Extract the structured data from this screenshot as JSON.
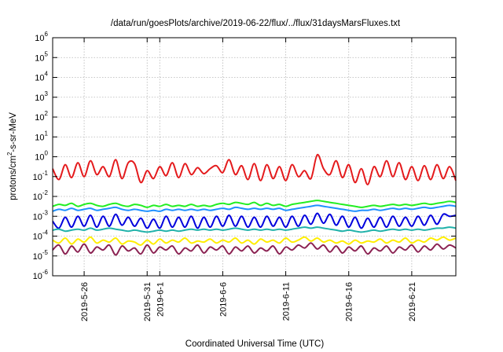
{
  "chart_data": {
    "type": "line",
    "title": "/data/run/goesPlots/archive/2019-06-22/flux/../flux/31daysMarsFluxes.txt",
    "xlabel": "Coordinated Universal Time (UTC)",
    "ylabel_base": "protons/cm",
    "ylabel_sup": "2",
    "ylabel_rest": "-s-sr-MeV",
    "yscale": "log",
    "ylim": [
      1e-06,
      1000000.0
    ],
    "xlim": [
      "2019-05-23T12:00",
      "2019-06-24T12:00"
    ],
    "grid": true,
    "x_ticks": [
      {
        "date": "2019-05-26",
        "label": "2019-5-26"
      },
      {
        "date": "2019-05-31",
        "label": "2019-5-31"
      },
      {
        "date": "2019-06-01",
        "label": "2019-6-1"
      },
      {
        "date": "2019-06-06",
        "label": "2019-6-6"
      },
      {
        "date": "2019-06-11",
        "label": "2019-6-11"
      },
      {
        "date": "2019-06-16",
        "label": "2019-6-16"
      },
      {
        "date": "2019-06-21",
        "label": "2019-6-21"
      }
    ],
    "y_ticks": [
      {
        "exp": -6,
        "base": "10",
        "sup": "-6"
      },
      {
        "exp": -5,
        "base": "10",
        "sup": "-5"
      },
      {
        "exp": -4,
        "base": "10",
        "sup": "-4"
      },
      {
        "exp": -3,
        "base": "10",
        "sup": "-3"
      },
      {
        "exp": -2,
        "base": "10",
        "sup": "-2"
      },
      {
        "exp": -1,
        "base": "10",
        "sup": "-1"
      },
      {
        "exp": 0,
        "base": "10",
        "sup": "0"
      },
      {
        "exp": 1,
        "base": "10",
        "sup": "1"
      },
      {
        "exp": 2,
        "base": "10",
        "sup": "2"
      },
      {
        "exp": 3,
        "base": "10",
        "sup": "3"
      },
      {
        "exp": 4,
        "base": "10",
        "sup": "4"
      },
      {
        "exp": 5,
        "base": "10",
        "sup": "5"
      },
      {
        "exp": 6,
        "base": "10",
        "sup": "6"
      }
    ],
    "series": [
      {
        "color": "#e41a1c",
        "x_start": "2019-05-23T12:00",
        "step_hours": 12,
        "log10_values": [
          -0.6,
          -1.15,
          -0.4,
          -1.05,
          -0.3,
          -1.0,
          -0.2,
          -0.9,
          -0.5,
          -1.0,
          -0.15,
          -1.1,
          -0.3,
          -0.35,
          -1.3,
          -0.7,
          -1.1,
          -0.5,
          -0.95,
          -0.3,
          -1.05,
          -0.35,
          -0.9,
          -0.55,
          -0.85,
          -0.6,
          -0.45,
          -0.8,
          -0.15,
          -0.9,
          -0.45,
          -1.15,
          -0.35,
          -1.2,
          -0.4,
          -1.1,
          -0.5,
          -1.2,
          -0.4,
          -1.0,
          -0.7,
          -1.1,
          0.1,
          -0.6,
          -0.9,
          -0.2,
          -1.05,
          -0.4,
          -1.3,
          -0.6,
          -1.4,
          -0.5,
          -1.0,
          -0.2,
          -1.0,
          -0.3,
          -1.15,
          -0.5,
          -1.2,
          -0.45,
          -1.15,
          -0.4,
          -1.1,
          -0.5,
          -1.2
        ]
      },
      {
        "color": "#22ee22",
        "x_start": "2019-05-23T12:00",
        "step_hours": 12,
        "log10_values": [
          -2.5,
          -2.4,
          -2.45,
          -2.35,
          -2.5,
          -2.4,
          -2.35,
          -2.45,
          -2.5,
          -2.4,
          -2.35,
          -2.45,
          -2.5,
          -2.4,
          -2.45,
          -2.55,
          -2.45,
          -2.5,
          -2.4,
          -2.5,
          -2.45,
          -2.5,
          -2.4,
          -2.5,
          -2.45,
          -2.5,
          -2.4,
          -2.35,
          -2.4,
          -2.3,
          -2.35,
          -2.4,
          -2.3,
          -2.45,
          -2.35,
          -2.45,
          -2.4,
          -2.5,
          -2.4,
          -2.35,
          -2.3,
          -2.25,
          -2.2,
          -2.25,
          -2.3,
          -2.35,
          -2.4,
          -2.45,
          -2.5,
          -2.55,
          -2.5,
          -2.45,
          -2.5,
          -2.45,
          -2.4,
          -2.45,
          -2.4,
          -2.45,
          -2.4,
          -2.35,
          -2.4,
          -2.35,
          -2.3,
          -2.25,
          -2.3
        ]
      },
      {
        "color": "#1e90ff",
        "x_start": "2019-05-23T12:00",
        "step_hours": 12,
        "log10_values": [
          -2.75,
          -2.65,
          -2.7,
          -2.6,
          -2.7,
          -2.65,
          -2.6,
          -2.7,
          -2.65,
          -2.6,
          -2.55,
          -2.65,
          -2.7,
          -2.65,
          -2.7,
          -2.75,
          -2.7,
          -2.75,
          -2.65,
          -2.7,
          -2.65,
          -2.7,
          -2.65,
          -2.7,
          -2.65,
          -2.7,
          -2.65,
          -2.6,
          -2.65,
          -2.55,
          -2.6,
          -2.65,
          -2.6,
          -2.65,
          -2.6,
          -2.65,
          -2.6,
          -2.7,
          -2.65,
          -2.6,
          -2.55,
          -2.5,
          -2.45,
          -2.5,
          -2.55,
          -2.6,
          -2.65,
          -2.7,
          -2.75,
          -2.7,
          -2.7,
          -2.65,
          -2.7,
          -2.65,
          -2.6,
          -2.65,
          -2.6,
          -2.65,
          -2.6,
          -2.55,
          -2.6,
          -2.55,
          -2.5,
          -2.45,
          -2.5
        ]
      },
      {
        "color": "#0000dd",
        "x_start": "2019-05-23T12:00",
        "step_hours": 12,
        "log10_values": [
          -3.25,
          -3.6,
          -3.05,
          -3.55,
          -3.0,
          -3.5,
          -2.95,
          -3.55,
          -3.0,
          -3.5,
          -2.9,
          -3.45,
          -3.05,
          -3.5,
          -3.1,
          -3.6,
          -3.15,
          -3.6,
          -3.0,
          -3.55,
          -3.05,
          -3.55,
          -3.0,
          -3.6,
          -3.05,
          -3.55,
          -3.0,
          -3.5,
          -2.95,
          -3.5,
          -3.0,
          -3.55,
          -3.05,
          -3.55,
          -3.0,
          -3.5,
          -3.05,
          -3.55,
          -3.0,
          -3.5,
          -2.95,
          -3.4,
          -2.85,
          -3.35,
          -2.9,
          -3.45,
          -3.0,
          -3.55,
          -3.05,
          -3.6,
          -3.1,
          -3.55,
          -3.05,
          -3.55,
          -3.0,
          -3.5,
          -3.05,
          -3.5,
          -3.0,
          -3.45,
          -2.95,
          -3.4,
          -2.9,
          -3.0,
          -2.95
        ]
      },
      {
        "color": "#20b2aa",
        "x_start": "2019-05-23T12:00",
        "step_hours": 12,
        "log10_values": [
          -3.7,
          -3.65,
          -3.75,
          -3.7,
          -3.65,
          -3.7,
          -3.6,
          -3.7,
          -3.65,
          -3.6,
          -3.65,
          -3.7,
          -3.75,
          -3.7,
          -3.75,
          -3.8,
          -3.75,
          -3.7,
          -3.75,
          -3.7,
          -3.75,
          -3.7,
          -3.65,
          -3.7,
          -3.65,
          -3.7,
          -3.65,
          -3.7,
          -3.65,
          -3.6,
          -3.65,
          -3.7,
          -3.65,
          -3.7,
          -3.65,
          -3.7,
          -3.65,
          -3.7,
          -3.65,
          -3.6,
          -3.55,
          -3.6,
          -3.55,
          -3.6,
          -3.65,
          -3.7,
          -3.75,
          -3.7,
          -3.75,
          -3.8,
          -3.75,
          -3.7,
          -3.75,
          -3.7,
          -3.65,
          -3.7,
          -3.65,
          -3.7,
          -3.65,
          -3.7,
          -3.65,
          -3.6,
          -3.6,
          -3.55,
          -3.6
        ]
      },
      {
        "color": "#ffee00",
        "x_start": "2019-05-23T12:00",
        "step_hours": 12,
        "log10_values": [
          -4.2,
          -4.35,
          -4.1,
          -4.4,
          -4.15,
          -4.3,
          -4.05,
          -4.35,
          -4.2,
          -4.3,
          -4.1,
          -4.4,
          -4.25,
          -4.3,
          -4.45,
          -4.2,
          -4.4,
          -4.15,
          -4.35,
          -4.2,
          -4.3,
          -4.1,
          -4.35,
          -4.25,
          -4.3,
          -4.15,
          -4.35,
          -4.2,
          -4.3,
          -4.1,
          -4.35,
          -4.2,
          -4.4,
          -4.15,
          -4.3,
          -4.2,
          -4.35,
          -4.1,
          -4.3,
          -4.2,
          -4.05,
          -4.25,
          -4.1,
          -4.3,
          -4.2,
          -4.35,
          -4.25,
          -4.4,
          -4.2,
          -4.35,
          -4.25,
          -4.3,
          -4.15,
          -4.35,
          -4.2,
          -4.3,
          -4.1,
          -4.35,
          -4.2,
          -4.3,
          -4.1,
          -4.2,
          -4.05,
          -4.2,
          -4.1
        ]
      },
      {
        "color": "#8b2252",
        "x_start": "2019-05-23T12:00",
        "step_hours": 12,
        "log10_values": [
          -4.7,
          -4.45,
          -4.9,
          -4.5,
          -4.8,
          -4.4,
          -4.85,
          -4.55,
          -4.7,
          -4.45,
          -4.95,
          -4.5,
          -4.75,
          -4.6,
          -4.9,
          -4.45,
          -4.85,
          -4.55,
          -4.7,
          -4.5,
          -4.9,
          -4.6,
          -4.75,
          -4.45,
          -4.85,
          -4.55,
          -4.7,
          -4.5,
          -4.9,
          -4.55,
          -4.75,
          -4.5,
          -4.85,
          -4.6,
          -4.75,
          -4.5,
          -4.9,
          -4.55,
          -4.7,
          -4.45,
          -4.6,
          -4.35,
          -4.65,
          -4.45,
          -4.8,
          -4.5,
          -4.85,
          -4.55,
          -4.75,
          -4.5,
          -4.9,
          -4.6,
          -4.75,
          -4.5,
          -4.85,
          -4.55,
          -4.7,
          -4.45,
          -4.8,
          -4.5,
          -4.7,
          -4.4,
          -4.65,
          -4.45,
          -4.6
        ]
      }
    ]
  }
}
